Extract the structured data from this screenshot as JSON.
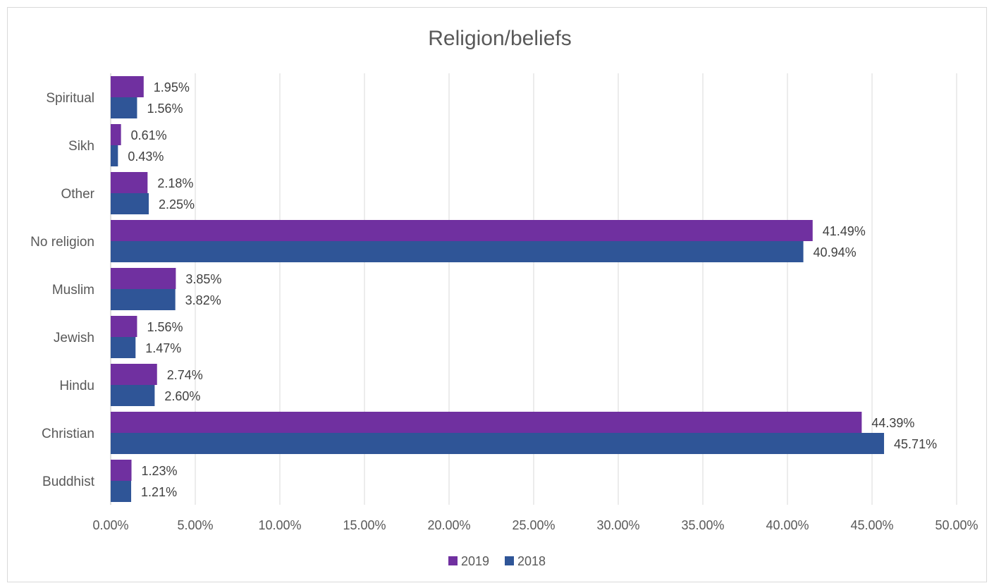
{
  "chart_data": {
    "type": "bar",
    "orientation": "horizontal",
    "title": "Religion/beliefs",
    "categories": [
      "Spiritual",
      "Sikh",
      "Other",
      "No religion",
      "Muslim",
      "Jewish",
      "Hindu",
      "Christian",
      "Buddhist"
    ],
    "series": [
      {
        "name": "2019",
        "color": "#7030a0",
        "values": [
          1.95,
          0.61,
          2.18,
          41.49,
          3.85,
          1.56,
          2.74,
          44.39,
          1.23
        ],
        "labels": [
          "1.95%",
          "0.61%",
          "2.18%",
          "41.49%",
          "3.85%",
          "1.56%",
          "2.74%",
          "44.39%",
          "1.23%"
        ]
      },
      {
        "name": "2018",
        "color": "#2f5597",
        "values": [
          1.56,
          0.43,
          2.25,
          40.94,
          3.82,
          1.47,
          2.6,
          45.71,
          1.21
        ],
        "labels": [
          "1.56%",
          "0.43%",
          "2.25%",
          "40.94%",
          "3.82%",
          "1.47%",
          "2.60%",
          "45.71%",
          "1.21%"
        ]
      }
    ],
    "xlim": [
      0,
      50
    ],
    "xticks": [
      "0.00%",
      "5.00%",
      "10.00%",
      "15.00%",
      "20.00%",
      "25.00%",
      "30.00%",
      "35.00%",
      "40.00%",
      "45.00%",
      "50.00%"
    ],
    "grid": true,
    "legend_position": "bottom"
  }
}
